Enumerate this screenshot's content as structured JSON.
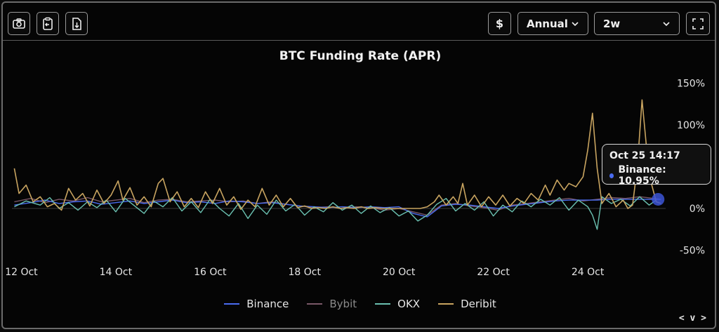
{
  "toolbar": {
    "left_buttons": [
      {
        "name": "screenshot",
        "icon": "camera-icon"
      },
      {
        "name": "copy",
        "icon": "clipboard-icon"
      },
      {
        "name": "download",
        "icon": "file-download-icon"
      }
    ],
    "currency_label": "$",
    "period_select": "Annual",
    "range_select": "2w",
    "fullscreen_icon": "fullscreen-icon"
  },
  "tooltip": {
    "time": "Oct 25 14:17",
    "series": "Binance",
    "value": "10.95%",
    "row_text": "Binance: 10.95%"
  },
  "pager_label": "< v >",
  "chart_data": {
    "type": "line",
    "title": "BTC Funding Rate (APR)",
    "x_ticks": [
      "12 Oct",
      "14 Oct",
      "16 Oct",
      "18 Oct",
      "20 Oct",
      "22 Oct",
      "24 Oct"
    ],
    "y_ticks": [
      "150%",
      "100%",
      "0%",
      "-50%"
    ],
    "y_tick_values": [
      150,
      100,
      0,
      -50
    ],
    "x_range": [
      11.8,
      25.65
    ],
    "ylim": [
      -50,
      150
    ],
    "legend_position": "bottom-center",
    "grid": false,
    "series": [
      {
        "name": "Binance",
        "color": "#4a6cf0",
        "points": [
          [
            11.85,
            4
          ],
          [
            12.2,
            7
          ],
          [
            12.5,
            10
          ],
          [
            12.8,
            6
          ],
          [
            13.1,
            8
          ],
          [
            13.4,
            9
          ],
          [
            13.7,
            5
          ],
          [
            14.0,
            7
          ],
          [
            14.3,
            9
          ],
          [
            14.6,
            6
          ],
          [
            14.9,
            8
          ],
          [
            15.2,
            10
          ],
          [
            15.5,
            7
          ],
          [
            15.8,
            8
          ],
          [
            16.1,
            6
          ],
          [
            16.4,
            9
          ],
          [
            16.7,
            8
          ],
          [
            17.0,
            6
          ],
          [
            17.3,
            7
          ],
          [
            17.6,
            5
          ],
          [
            17.9,
            3
          ],
          [
            18.2,
            2
          ],
          [
            18.5,
            1
          ],
          [
            18.8,
            2
          ],
          [
            19.1,
            1
          ],
          [
            19.4,
            2
          ],
          [
            19.7,
            1
          ],
          [
            20.0,
            2
          ],
          [
            20.3,
            -6
          ],
          [
            20.6,
            -10
          ],
          [
            20.9,
            3
          ],
          [
            21.2,
            5
          ],
          [
            21.5,
            4
          ],
          [
            21.8,
            2
          ],
          [
            22.1,
            0
          ],
          [
            22.4,
            3
          ],
          [
            22.7,
            5
          ],
          [
            23.0,
            7
          ],
          [
            23.3,
            9
          ],
          [
            23.6,
            10
          ],
          [
            23.9,
            10
          ],
          [
            24.2,
            10
          ],
          [
            24.5,
            11
          ],
          [
            24.8,
            11
          ],
          [
            25.1,
            11
          ],
          [
            25.4,
            10.95
          ],
          [
            25.55,
            10.95
          ]
        ]
      },
      {
        "name": "Bybit",
        "color": "#7a5868",
        "points": [
          [
            11.85,
            8
          ],
          [
            12.2,
            12
          ],
          [
            12.5,
            7
          ],
          [
            12.8,
            11
          ],
          [
            13.1,
            9
          ],
          [
            13.4,
            13
          ],
          [
            13.7,
            8
          ],
          [
            14.0,
            10
          ],
          [
            14.3,
            12
          ],
          [
            14.6,
            7
          ],
          [
            14.9,
            10
          ],
          [
            15.2,
            11
          ],
          [
            15.5,
            8
          ],
          [
            15.8,
            9
          ],
          [
            16.1,
            10
          ],
          [
            16.4,
            8
          ],
          [
            16.7,
            9
          ],
          [
            17.0,
            6
          ],
          [
            17.3,
            8
          ],
          [
            17.6,
            5
          ],
          [
            17.9,
            3
          ],
          [
            18.2,
            1
          ],
          [
            18.5,
            2
          ],
          [
            18.8,
            0
          ],
          [
            19.1,
            2
          ],
          [
            19.4,
            1
          ],
          [
            19.7,
            -2
          ],
          [
            20.0,
            0
          ],
          [
            20.3,
            -4
          ],
          [
            20.6,
            -8
          ],
          [
            20.9,
            4
          ],
          [
            21.2,
            6
          ],
          [
            21.5,
            3
          ],
          [
            21.8,
            1
          ],
          [
            22.1,
            -2
          ],
          [
            22.4,
            4
          ],
          [
            22.7,
            6
          ],
          [
            23.0,
            8
          ],
          [
            23.3,
            10
          ],
          [
            23.6,
            12
          ],
          [
            23.9,
            9
          ],
          [
            24.2,
            11
          ],
          [
            24.5,
            13
          ],
          [
            24.8,
            12
          ],
          [
            25.1,
            14
          ],
          [
            25.4,
            12
          ],
          [
            25.55,
            11
          ]
        ]
      },
      {
        "name": "OKX",
        "color": "#6ac0b0",
        "points": [
          [
            11.85,
            2
          ],
          [
            12.1,
            9
          ],
          [
            12.4,
            4
          ],
          [
            12.6,
            13
          ],
          [
            12.8,
            0
          ],
          [
            13.0,
            7
          ],
          [
            13.2,
            -2
          ],
          [
            13.4,
            8
          ],
          [
            13.6,
            1
          ],
          [
            13.8,
            10
          ],
          [
            14.0,
            -4
          ],
          [
            14.2,
            12
          ],
          [
            14.4,
            3
          ],
          [
            14.6,
            -6
          ],
          [
            14.8,
            9
          ],
          [
            15.0,
            2
          ],
          [
            15.2,
            13
          ],
          [
            15.4,
            -3
          ],
          [
            15.6,
            8
          ],
          [
            15.8,
            -5
          ],
          [
            16.0,
            11
          ],
          [
            16.2,
            0
          ],
          [
            16.4,
            -9
          ],
          [
            16.6,
            6
          ],
          [
            16.8,
            -12
          ],
          [
            17.0,
            4
          ],
          [
            17.2,
            -7
          ],
          [
            17.4,
            10
          ],
          [
            17.6,
            -3
          ],
          [
            17.8,
            5
          ],
          [
            18.0,
            -8
          ],
          [
            18.2,
            2
          ],
          [
            18.4,
            -4
          ],
          [
            18.6,
            7
          ],
          [
            18.8,
            -2
          ],
          [
            19.0,
            4
          ],
          [
            19.2,
            -6
          ],
          [
            19.4,
            3
          ],
          [
            19.6,
            -5
          ],
          [
            19.8,
            1
          ],
          [
            20.0,
            -9
          ],
          [
            20.2,
            -3
          ],
          [
            20.4,
            -15
          ],
          [
            20.6,
            -8
          ],
          [
            20.8,
            5
          ],
          [
            21.0,
            12
          ],
          [
            21.2,
            -3
          ],
          [
            21.4,
            6
          ],
          [
            21.6,
            -2
          ],
          [
            21.8,
            8
          ],
          [
            22.0,
            -9
          ],
          [
            22.2,
            4
          ],
          [
            22.4,
            -4
          ],
          [
            22.6,
            9
          ],
          [
            22.8,
            2
          ],
          [
            23.0,
            11
          ],
          [
            23.2,
            4
          ],
          [
            23.4,
            13
          ],
          [
            23.6,
            -2
          ],
          [
            23.8,
            10
          ],
          [
            24.0,
            2
          ],
          [
            24.1,
            -8
          ],
          [
            24.2,
            -25
          ],
          [
            24.3,
            14
          ],
          [
            24.5,
            6
          ],
          [
            24.7,
            11
          ],
          [
            24.9,
            3
          ],
          [
            25.1,
            14
          ],
          [
            25.3,
            4
          ],
          [
            25.45,
            10
          ]
        ]
      },
      {
        "name": "Deribit",
        "color": "#c8a460",
        "points": [
          [
            11.85,
            48
          ],
          [
            11.95,
            18
          ],
          [
            12.1,
            28
          ],
          [
            12.25,
            8
          ],
          [
            12.4,
            14
          ],
          [
            12.55,
            2
          ],
          [
            12.7,
            6
          ],
          [
            12.85,
            -2
          ],
          [
            13.0,
            24
          ],
          [
            13.15,
            10
          ],
          [
            13.3,
            18
          ],
          [
            13.45,
            3
          ],
          [
            13.6,
            22
          ],
          [
            13.75,
            6
          ],
          [
            13.9,
            16
          ],
          [
            14.05,
            33
          ],
          [
            14.15,
            10
          ],
          [
            14.3,
            25
          ],
          [
            14.45,
            4
          ],
          [
            14.6,
            14
          ],
          [
            14.75,
            2
          ],
          [
            14.9,
            30
          ],
          [
            15.0,
            36
          ],
          [
            15.15,
            8
          ],
          [
            15.3,
            20
          ],
          [
            15.45,
            2
          ],
          [
            15.6,
            12
          ],
          [
            15.75,
            1
          ],
          [
            15.9,
            20
          ],
          [
            16.05,
            6
          ],
          [
            16.2,
            24
          ],
          [
            16.35,
            4
          ],
          [
            16.5,
            14
          ],
          [
            16.65,
            -1
          ],
          [
            16.8,
            10
          ],
          [
            16.95,
            2
          ],
          [
            17.1,
            24
          ],
          [
            17.25,
            4
          ],
          [
            17.4,
            16
          ],
          [
            17.55,
            2
          ],
          [
            17.7,
            12
          ],
          [
            17.85,
            1
          ],
          [
            18.0,
            3
          ],
          [
            18.15,
            0
          ],
          [
            18.3,
            1
          ],
          [
            18.45,
            0
          ],
          [
            18.6,
            2
          ],
          [
            18.75,
            0
          ],
          [
            18.9,
            1
          ],
          [
            19.05,
            0
          ],
          [
            19.2,
            2
          ],
          [
            19.35,
            0
          ],
          [
            19.5,
            1
          ],
          [
            19.65,
            0
          ],
          [
            19.8,
            0
          ],
          [
            20.0,
            0
          ],
          [
            20.15,
            0
          ],
          [
            20.3,
            0
          ],
          [
            20.45,
            0
          ],
          [
            20.6,
            2
          ],
          [
            20.75,
            8
          ],
          [
            20.85,
            16
          ],
          [
            21.0,
            4
          ],
          [
            21.15,
            14
          ],
          [
            21.25,
            6
          ],
          [
            21.35,
            30
          ],
          [
            21.45,
            4
          ],
          [
            21.6,
            16
          ],
          [
            21.75,
            2
          ],
          [
            21.9,
            14
          ],
          [
            22.05,
            4
          ],
          [
            22.2,
            16
          ],
          [
            22.35,
            3
          ],
          [
            22.5,
            12
          ],
          [
            22.65,
            6
          ],
          [
            22.8,
            18
          ],
          [
            22.95,
            10
          ],
          [
            23.1,
            28
          ],
          [
            23.2,
            16
          ],
          [
            23.35,
            34
          ],
          [
            23.5,
            22
          ],
          [
            23.6,
            30
          ],
          [
            23.75,
            26
          ],
          [
            23.9,
            38
          ],
          [
            24.0,
            70
          ],
          [
            24.1,
            114
          ],
          [
            24.2,
            48
          ],
          [
            24.3,
            6
          ],
          [
            24.45,
            18
          ],
          [
            24.6,
            2
          ],
          [
            24.75,
            10
          ],
          [
            24.85,
            0
          ],
          [
            24.95,
            4
          ],
          [
            25.05,
            50
          ],
          [
            25.15,
            130
          ],
          [
            25.3,
            40
          ],
          [
            25.45,
            8
          ],
          [
            25.55,
            6
          ]
        ]
      }
    ]
  }
}
